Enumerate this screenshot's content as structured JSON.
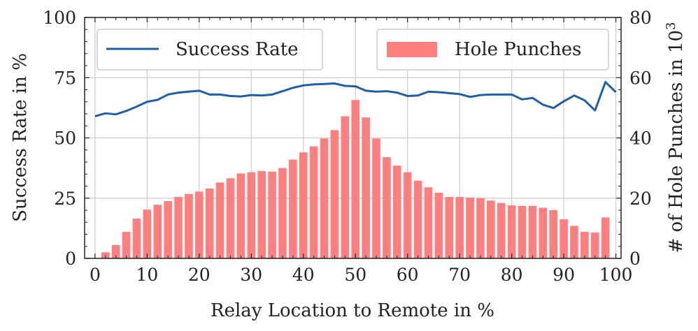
{
  "chart_data": {
    "type": "bar+line",
    "title": "",
    "xlabel": "Relay Location to Remote in %",
    "ylabel_left": "Success Rate in %",
    "ylabel_right_main": "# of Hole Punches in 10",
    "ylabel_right_exp": "3",
    "xlim": [
      -2,
      101
    ],
    "ylim_left": [
      0,
      100
    ],
    "ylim_right": [
      0,
      80
    ],
    "xticks": [
      "0",
      "10",
      "20",
      "30",
      "40",
      "50",
      "60",
      "70",
      "80",
      "90",
      "100"
    ],
    "yticks_left": [
      "0",
      "25",
      "50",
      "75",
      "100"
    ],
    "yticks_right": [
      "0",
      "20",
      "40",
      "60",
      "80"
    ],
    "grid": true,
    "legend": {
      "line_label": "Success Rate",
      "bar_label": "Hole Punches",
      "line_placement": "top-left",
      "bar_placement": "top-right"
    },
    "colors": {
      "line": "#1f5fa5",
      "bars": "#ff7f7f",
      "grid": "#cccccc",
      "axis": "#222222"
    },
    "bars": {
      "name": "Hole Punches",
      "x": [
        0,
        2,
        4,
        6,
        8,
        10,
        12,
        14,
        16,
        18,
        20,
        22,
        24,
        26,
        28,
        30,
        32,
        34,
        36,
        38,
        40,
        42,
        44,
        46,
        48,
        50,
        52,
        54,
        56,
        58,
        60,
        62,
        64,
        66,
        68,
        70,
        72,
        74,
        76,
        78,
        80,
        82,
        84,
        86,
        88,
        90,
        92,
        94,
        96,
        98
      ],
      "values": [
        0,
        2.0,
        4.4,
        8.8,
        13.2,
        16.2,
        17.8,
        19.0,
        20.4,
        21.4,
        22.2,
        23.2,
        25.2,
        26.6,
        28.2,
        28.6,
        29.0,
        28.8,
        30.0,
        32.8,
        35.2,
        37.2,
        39.8,
        42.6,
        47.2,
        52.6,
        46.8,
        39.8,
        33.6,
        30.8,
        28.6,
        25.8,
        23.6,
        21.8,
        20.4,
        20.4,
        20.2,
        20.0,
        19.2,
        18.4,
        17.6,
        17.4,
        17.4,
        16.8,
        16.0,
        13.0,
        10.8,
        8.8,
        8.6,
        13.6
      ]
    },
    "series": [
      {
        "name": "Success Rate",
        "x": [
          0,
          2,
          4,
          6,
          8,
          10,
          12,
          14,
          16,
          18,
          20,
          22,
          24,
          26,
          28,
          30,
          32,
          34,
          36,
          38,
          40,
          42,
          44,
          46,
          48,
          50,
          52,
          54,
          56,
          58,
          60,
          62,
          64,
          66,
          68,
          70,
          72,
          74,
          76,
          78,
          80,
          82,
          84,
          86,
          88,
          90,
          92,
          94,
          96,
          98,
          100
        ],
        "values": [
          59.0,
          60.2,
          59.8,
          61.2,
          63.0,
          65.0,
          65.8,
          68.0,
          68.8,
          69.2,
          69.6,
          68.0,
          68.0,
          67.4,
          67.2,
          67.8,
          67.6,
          68.0,
          69.4,
          70.8,
          71.8,
          72.2,
          72.4,
          72.6,
          71.6,
          71.4,
          69.6,
          69.2,
          69.4,
          68.8,
          67.4,
          67.6,
          69.2,
          69.0,
          68.6,
          68.2,
          67.0,
          67.8,
          68.0,
          68.0,
          68.0,
          66.0,
          66.6,
          63.8,
          62.4,
          65.2,
          67.6,
          65.6,
          61.4,
          73.2,
          69.0
        ]
      }
    ]
  }
}
